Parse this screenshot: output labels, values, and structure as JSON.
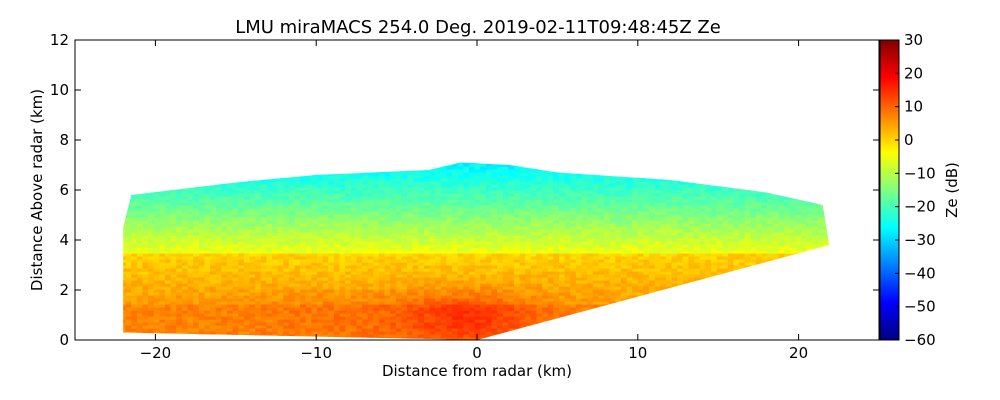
{
  "chart_data": {
    "type": "heatmap",
    "title": "LMU miraMACS 254.0 Deg. 2019-02-11T09:48:45Z  Ze",
    "xlabel": "Distance from radar (km)",
    "ylabel": "Distance Above radar  (km)",
    "xlim": [
      -25,
      25
    ],
    "ylim": [
      0,
      12
    ],
    "xticks": [
      -20,
      -10,
      0,
      10,
      20
    ],
    "xtick_labels": [
      "−20",
      "−10",
      "0",
      "10",
      "20"
    ],
    "yticks": [
      0,
      2,
      4,
      6,
      8,
      10,
      12
    ],
    "ytick_labels": [
      "0",
      "2",
      "4",
      "6",
      "8",
      "10",
      "12"
    ],
    "colorbar": {
      "label": "Ze (dB)",
      "colormap": "jet",
      "range": [
        -60,
        30
      ],
      "ticks": [
        30,
        20,
        10,
        0,
        -10,
        -20,
        -30,
        -40,
        -50,
        -60
      ],
      "tick_labels": [
        "30",
        "20",
        "10",
        "0",
        "−10",
        "−20",
        "−30",
        "−40",
        "−50",
        "−60"
      ]
    },
    "echo_region": {
      "description_units": "km",
      "outline": [
        [
          -22,
          0.3
        ],
        [
          -22,
          4.5
        ],
        [
          -21.5,
          5.8
        ],
        [
          -15,
          6.3
        ],
        [
          -10,
          6.6
        ],
        [
          -3,
          6.8
        ],
        [
          -1,
          7.1
        ],
        [
          2,
          7.0
        ],
        [
          5,
          6.7
        ],
        [
          12,
          6.4
        ],
        [
          18,
          5.9
        ],
        [
          21.5,
          5.4
        ],
        [
          21.9,
          3.8
        ],
        [
          0,
          0
        ],
        [
          -22,
          0.3
        ]
      ],
      "reflectivity_dB": {
        "surface_core_near_radar": 12,
        "lower_layer": 5,
        "mid_layer": -5,
        "upper_layer": -18,
        "cloud_top": -27
      }
    }
  }
}
